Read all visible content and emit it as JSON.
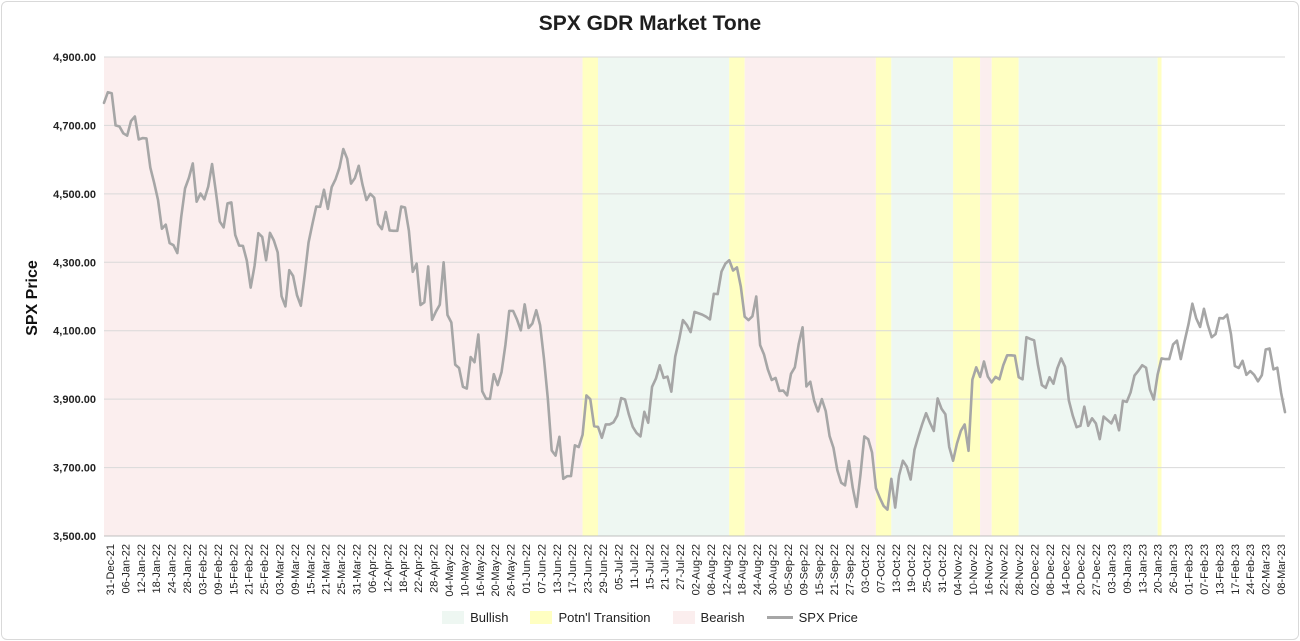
{
  "chart_data": {
    "type": "line",
    "title": "SPX GDR Market Tone",
    "ylabel": "SPX Price",
    "xlabel": "",
    "ylim": [
      3500,
      4900
    ],
    "y_ticks": [
      "3,500.00",
      "3,700.00",
      "3,900.00",
      "4,100.00",
      "4,300.00",
      "4,500.00",
      "4,700.00",
      "4,900.00"
    ],
    "y_tick_values": [
      3500,
      3700,
      3900,
      4100,
      4300,
      4500,
      4700,
      4900
    ],
    "x_ticks": [
      "31-Dec-21",
      "06-Jan-22",
      "12-Jan-22",
      "18-Jan-22",
      "24-Jan-22",
      "28-Jan-22",
      "03-Feb-22",
      "09-Feb-22",
      "15-Feb-22",
      "21-Feb-22",
      "25-Feb-22",
      "03-Mar-22",
      "09-Mar-22",
      "15-Mar-22",
      "21-Mar-22",
      "25-Mar-22",
      "31-Mar-22",
      "06-Apr-22",
      "12-Apr-22",
      "18-Apr-22",
      "22-Apr-22",
      "28-Apr-22",
      "04-May-22",
      "10-May-22",
      "16-May-22",
      "20-May-22",
      "26-May-22",
      "01-Jun-22",
      "07-Jun-22",
      "13-Jun-22",
      "17-Jun-22",
      "23-Jun-22",
      "29-Jun-22",
      "05-Jul-22",
      "11-Jul-22",
      "15-Jul-22",
      "21-Jul-22",
      "27-Jul-22",
      "02-Aug-22",
      "08-Aug-22",
      "12-Aug-22",
      "18-Aug-22",
      "24-Aug-22",
      "30-Aug-22",
      "05-Sep-22",
      "09-Sep-22",
      "15-Sep-22",
      "21-Sep-22",
      "27-Sep-22",
      "03-Oct-22",
      "07-Oct-22",
      "13-Oct-22",
      "19-Oct-22",
      "25-Oct-22",
      "31-Oct-22",
      "04-Nov-22",
      "10-Nov-22",
      "16-Nov-22",
      "22-Nov-22",
      "28-Nov-22",
      "02-Dec-22",
      "08-Dec-22",
      "14-Dec-22",
      "20-Dec-22",
      "27-Dec-22",
      "03-Jan-23",
      "09-Jan-23",
      "13-Jan-23",
      "20-Jan-23",
      "26-Jan-23",
      "01-Feb-23",
      "07-Feb-23",
      "13-Feb-23",
      "17-Feb-23",
      "24-Feb-23",
      "02-Mar-23",
      "08-Mar-23"
    ],
    "regions": [
      {
        "tone": "Bearish",
        "start": 0,
        "end": 124
      },
      {
        "tone": "Potn'l Transition",
        "start": 124,
        "end": 128
      },
      {
        "tone": "Bullish",
        "start": 128,
        "end": 162
      },
      {
        "tone": "Potn'l Transition",
        "start": 162,
        "end": 166
      },
      {
        "tone": "Bearish",
        "start": 166,
        "end": 200
      },
      {
        "tone": "Potn'l Transition",
        "start": 200,
        "end": 204
      },
      {
        "tone": "Bullish",
        "start": 204,
        "end": 220
      },
      {
        "tone": "Potn'l Transition",
        "start": 220,
        "end": 227
      },
      {
        "tone": "Bearish",
        "start": 227,
        "end": 230
      },
      {
        "tone": "Potn'l Transition",
        "start": 230,
        "end": 237
      },
      {
        "tone": "Bullish",
        "start": 237,
        "end": 273
      },
      {
        "tone": "Potn'l Transition",
        "start": 273,
        "end": 274
      }
    ],
    "colors": {
      "Bullish": "#eef7f2",
      "Potn'l Transition": "#ffffc2",
      "Bearish": "#fbeeee",
      "SPX Price": "#a6a6a6",
      "grid": "#d9d9d9"
    },
    "series": [
      {
        "name": "SPX Price",
        "values": [
          4766,
          4797,
          4794,
          4700,
          4697,
          4677,
          4670,
          4713,
          4726,
          4659,
          4663,
          4662,
          4577,
          4532,
          4482,
          4398,
          4410,
          4356,
          4350,
          4327,
          4432,
          4516,
          4547,
          4589,
          4477,
          4501,
          4484,
          4521,
          4587,
          4505,
          4419,
          4402,
          4472,
          4475,
          4380,
          4349,
          4348,
          4305,
          4226,
          4289,
          4385,
          4374,
          4306,
          4386,
          4364,
          4329,
          4201,
          4171,
          4277,
          4260,
          4204,
          4173,
          4262,
          4358,
          4412,
          4463,
          4462,
          4512,
          4456,
          4520,
          4543,
          4576,
          4631,
          4603,
          4530,
          4546,
          4582,
          4526,
          4482,
          4500,
          4489,
          4412,
          4397,
          4447,
          4393,
          4392,
          4392,
          4463,
          4460,
          4392,
          4272,
          4296,
          4175,
          4183,
          4288,
          4132,
          4156,
          4176,
          4300,
          4146,
          4124,
          4001,
          3991,
          3936,
          3931,
          4023,
          4008,
          4089,
          3923,
          3901,
          3901,
          3973,
          3941,
          3979,
          4058,
          4158,
          4158,
          4133,
          4101,
          4177,
          4108,
          4121,
          4160,
          4116,
          4018,
          3901,
          3750,
          3735,
          3790,
          3667,
          3675,
          3675,
          3765,
          3760,
          3796,
          3911,
          3900,
          3821,
          3819,
          3787,
          3826,
          3826,
          3832,
          3852,
          3903,
          3899,
          3855,
          3819,
          3801,
          3791,
          3863,
          3831,
          3936,
          3960,
          3999,
          3962,
          3966,
          3922,
          4024,
          4073,
          4131,
          4117,
          4096,
          4155,
          4151,
          4147,
          4141,
          4133,
          4208,
          4207,
          4273,
          4296,
          4306,
          4276,
          4285,
          4229,
          4141,
          4131,
          4142,
          4200,
          4058,
          4031,
          3987,
          3956,
          3962,
          3924,
          3925,
          3911,
          3974,
          3993,
          4061,
          4110,
          3937,
          3951,
          3896,
          3864,
          3900,
          3865,
          3792,
          3758,
          3693,
          3656,
          3648,
          3719,
          3641,
          3585,
          3679,
          3791,
          3783,
          3744,
          3640,
          3612,
          3588,
          3577,
          3667,
          3583,
          3677,
          3720,
          3703,
          3665,
          3752,
          3791,
          3827,
          3859,
          3831,
          3807,
          3902,
          3872,
          3856,
          3760,
          3720,
          3770,
          3807,
          3826,
          3749,
          3957,
          3993,
          3965,
          4010,
          3966,
          3949,
          3965,
          3958,
          3999,
          4028,
          4028,
          4027,
          3964,
          3958,
          4081,
          4076,
          4072,
          3999,
          3941,
          3933,
          3964,
          3945,
          3990,
          4019,
          3995,
          3896,
          3852,
          3818,
          3822,
          3878,
          3822,
          3844,
          3829,
          3783,
          3849,
          3839,
          3829,
          3853,
          3809,
          3895,
          3892,
          3920,
          3969,
          3983,
          3999,
          3992,
          3928,
          3899,
          3972,
          4019,
          4017,
          4017,
          4060,
          4071,
          4017,
          4070,
          4119,
          4179,
          4136,
          4111,
          4164,
          4117,
          4081,
          4090,
          4137,
          4136,
          4147,
          4090,
          3997,
          3991,
          4012,
          3971,
          3982,
          3971,
          3952,
          3970,
          4045,
          4048,
          3987,
          3992,
          3918,
          3862
        ]
      }
    ]
  },
  "legend": [
    {
      "label": "Bullish",
      "kind": "box"
    },
    {
      "label": "Potn'l Transition",
      "kind": "box"
    },
    {
      "label": "Bearish",
      "kind": "box"
    },
    {
      "label": "SPX Price",
      "kind": "line"
    }
  ]
}
